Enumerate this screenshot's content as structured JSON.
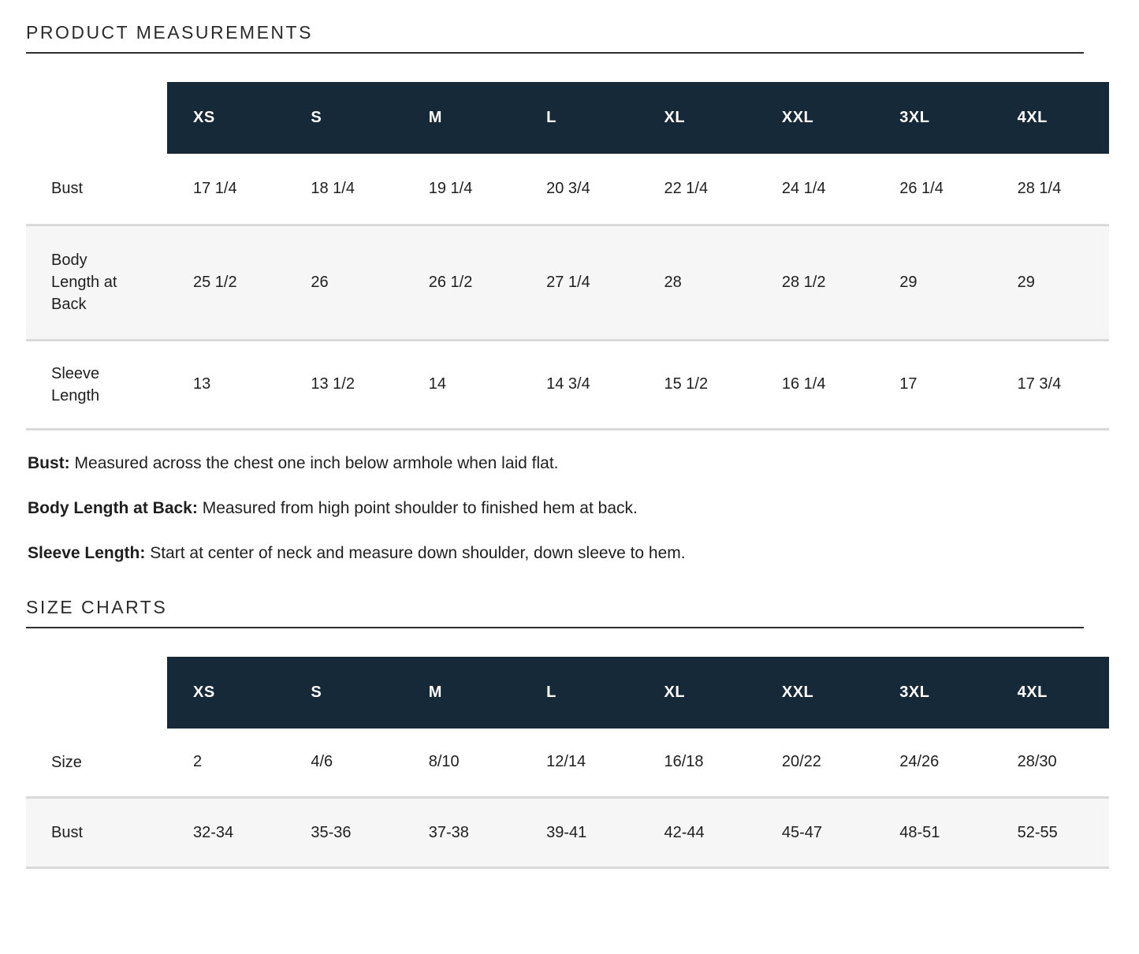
{
  "theme": {
    "header_bg": "#152939",
    "stripe_bg": "#f6f6f6",
    "divider": "#d9d9d9",
    "text": "#1f1f1f"
  },
  "product_measurements": {
    "title": "PRODUCT MEASUREMENTS",
    "sizes": [
      "XS",
      "S",
      "M",
      "L",
      "XL",
      "XXL",
      "3XL",
      "4XL"
    ],
    "rows": [
      {
        "label": "Bust",
        "values": [
          "17 1/4",
          "18 1/4",
          "19 1/4",
          "20 3/4",
          "22 1/4",
          "24 1/4",
          "26 1/4",
          "28 1/4"
        ]
      },
      {
        "label": "Body Length at Back",
        "values": [
          "25 1/2",
          "26",
          "26 1/2",
          "27 1/4",
          "28",
          "28 1/2",
          "29",
          "29"
        ]
      },
      {
        "label": "Sleeve Length",
        "values": [
          "13",
          "13 1/2",
          "14",
          "14 3/4",
          "15 1/2",
          "16 1/4",
          "17",
          "17 3/4"
        ]
      }
    ],
    "notes": [
      {
        "term": "Bust:",
        "definition": "Measured across the chest one inch below armhole when laid flat."
      },
      {
        "term": "Body Length at Back:",
        "definition": "Measured from high point shoulder to finished hem at back."
      },
      {
        "term": "Sleeve Length:",
        "definition": "Start at center of neck and measure down shoulder, down sleeve to hem."
      }
    ]
  },
  "size_charts": {
    "title": "SIZE CHARTS",
    "sizes": [
      "XS",
      "S",
      "M",
      "L",
      "XL",
      "XXL",
      "3XL",
      "4XL"
    ],
    "rows": [
      {
        "label": "Size",
        "values": [
          "2",
          "4/6",
          "8/10",
          "12/14",
          "16/18",
          "20/22",
          "24/26",
          "28/30"
        ]
      },
      {
        "label": "Bust",
        "values": [
          "32-34",
          "35-36",
          "37-38",
          "39-41",
          "42-44",
          "45-47",
          "48-51",
          "52-55"
        ]
      }
    ]
  }
}
